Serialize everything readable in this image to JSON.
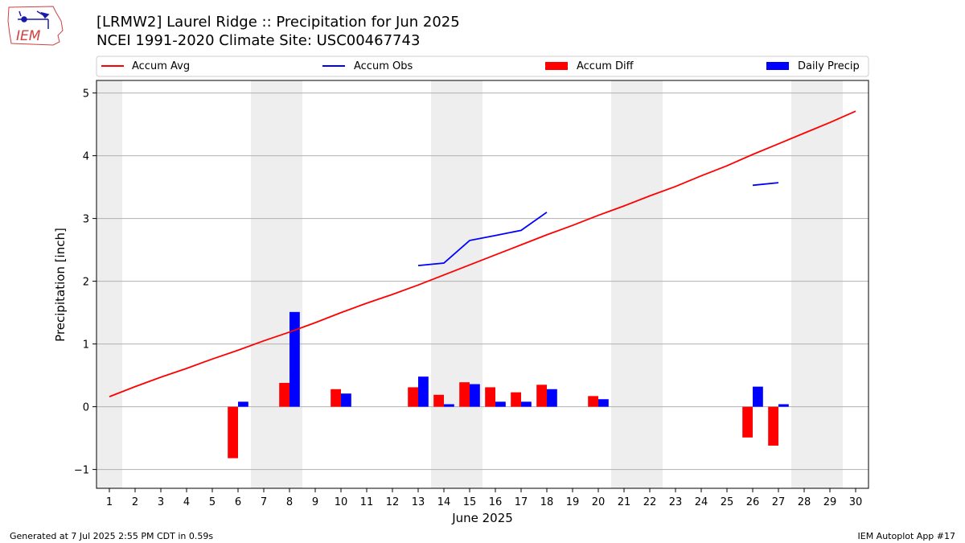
{
  "header": {
    "title_line1": "[LRMW2] Laurel Ridge :: Precipitation for Jun 2025",
    "title_line2": "NCEI 1991-2020 Climate Site: USC00467743"
  },
  "logo": {
    "text": "IEM",
    "icon": "iem-iowa-logo"
  },
  "footer": {
    "left": "Generated at 7 Jul 2025 2:55 PM CDT in 0.59s",
    "right": "IEM Autoplot App #17"
  },
  "colors": {
    "avg": "#ff0000",
    "obs": "#0000ff",
    "diff": "#ff0000",
    "daily": "#0000ff",
    "weekend": "#eeeeee",
    "grid": "#b0b0b0"
  },
  "chart_data": {
    "type": "bar",
    "xlabel": "June 2025",
    "ylabel": "Precipitation [inch]",
    "xlim": [
      0.5,
      30.5
    ],
    "ylim": [
      -1.3,
      5.2
    ],
    "yticks": [
      -1,
      0,
      1,
      2,
      3,
      4,
      5
    ],
    "ytick_labels": [
      "−1",
      "0",
      "1",
      "2",
      "3",
      "4",
      "5"
    ],
    "days": [
      1,
      2,
      3,
      4,
      5,
      6,
      7,
      8,
      9,
      10,
      11,
      12,
      13,
      14,
      15,
      16,
      17,
      18,
      19,
      20,
      21,
      22,
      23,
      24,
      25,
      26,
      27,
      28,
      29,
      30
    ],
    "shaded_weekend_days": [
      1,
      7,
      8,
      14,
      15,
      21,
      22,
      28,
      29
    ],
    "legend": {
      "placement": "top, above plot",
      "entries": [
        "Accum Avg",
        "Accum Obs",
        "Accum Diff",
        "Daily Precip"
      ]
    },
    "series": [
      {
        "name": "Accum Avg",
        "type": "line",
        "x": [
          1,
          2,
          3,
          4,
          5,
          6,
          7,
          8,
          9,
          10,
          11,
          12,
          13,
          14,
          15,
          16,
          17,
          18,
          19,
          20,
          21,
          22,
          23,
          24,
          25,
          26,
          27,
          28,
          29,
          30
        ],
        "values": [
          0.16,
          0.32,
          0.47,
          0.61,
          0.76,
          0.9,
          1.05,
          1.19,
          1.34,
          1.5,
          1.65,
          1.79,
          1.94,
          2.1,
          2.26,
          2.42,
          2.58,
          2.74,
          2.89,
          3.05,
          3.2,
          3.36,
          3.51,
          3.68,
          3.84,
          4.02,
          4.19,
          4.36,
          4.53,
          4.71
        ]
      },
      {
        "name": "Accum Obs",
        "type": "line",
        "segments": [
          {
            "x": [
              13,
              14,
              15,
              16,
              17,
              18
            ],
            "values": [
              2.25,
              2.29,
              2.65,
              2.73,
              2.81,
              3.1
            ]
          },
          {
            "x": [
              26,
              27
            ],
            "values": [
              3.53,
              3.57
            ]
          }
        ]
      },
      {
        "name": "Accum Diff",
        "type": "bar",
        "x": [
          6,
          8,
          10,
          13,
          14,
          15,
          16,
          17,
          18,
          20,
          26,
          27
        ],
        "values": [
          -0.82,
          0.38,
          0.28,
          0.31,
          0.19,
          0.39,
          0.31,
          0.23,
          0.35,
          0.17,
          -0.49,
          -0.62
        ]
      },
      {
        "name": "Daily Precip",
        "type": "bar",
        "x": [
          6,
          8,
          10,
          13,
          14,
          15,
          16,
          17,
          18,
          20,
          26,
          27
        ],
        "values": [
          0.08,
          1.51,
          0.21,
          0.48,
          0.04,
          0.36,
          0.08,
          0.08,
          0.28,
          0.12,
          0.32,
          0.04
        ]
      }
    ]
  }
}
